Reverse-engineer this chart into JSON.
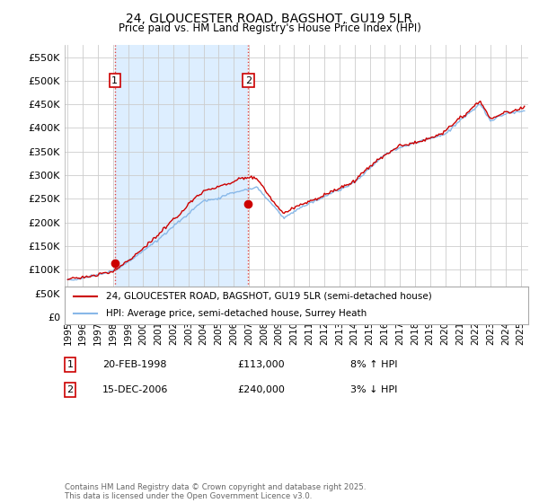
{
  "title": "24, GLOUCESTER ROAD, BAGSHOT, GU19 5LR",
  "subtitle": "Price paid vs. HM Land Registry's House Price Index (HPI)",
  "bg_color": "#ddeeff",
  "plot_bg_color": "#ffffff",
  "shade_color": "#ddeeff",
  "grid_color": "#cccccc",
  "ylim": [
    0,
    575000
  ],
  "yticks": [
    0,
    50000,
    100000,
    150000,
    200000,
    250000,
    300000,
    350000,
    400000,
    450000,
    500000,
    550000
  ],
  "ytick_labels": [
    "£0",
    "£50K",
    "£100K",
    "£150K",
    "£200K",
    "£250K",
    "£300K",
    "£350K",
    "£400K",
    "£450K",
    "£500K",
    "£550K"
  ],
  "xlim_start": 1994.8,
  "xlim_end": 2025.5,
  "line_red_color": "#cc0000",
  "line_blue_color": "#88b8e8",
  "sale1_year": 1998.12,
  "sale1_price": 113000,
  "sale2_year": 2006.96,
  "sale2_price": 240000,
  "legend_line1": "24, GLOUCESTER ROAD, BAGSHOT, GU19 5LR (semi-detached house)",
  "legend_line2": "HPI: Average price, semi-detached house, Surrey Heath",
  "annotation1_date": "20-FEB-1998",
  "annotation1_price": "£113,000",
  "annotation1_hpi": "8% ↑ HPI",
  "annotation2_date": "15-DEC-2006",
  "annotation2_price": "£240,000",
  "annotation2_hpi": "3% ↓ HPI",
  "footer": "Contains HM Land Registry data © Crown copyright and database right 2025.\nThis data is licensed under the Open Government Licence v3.0."
}
